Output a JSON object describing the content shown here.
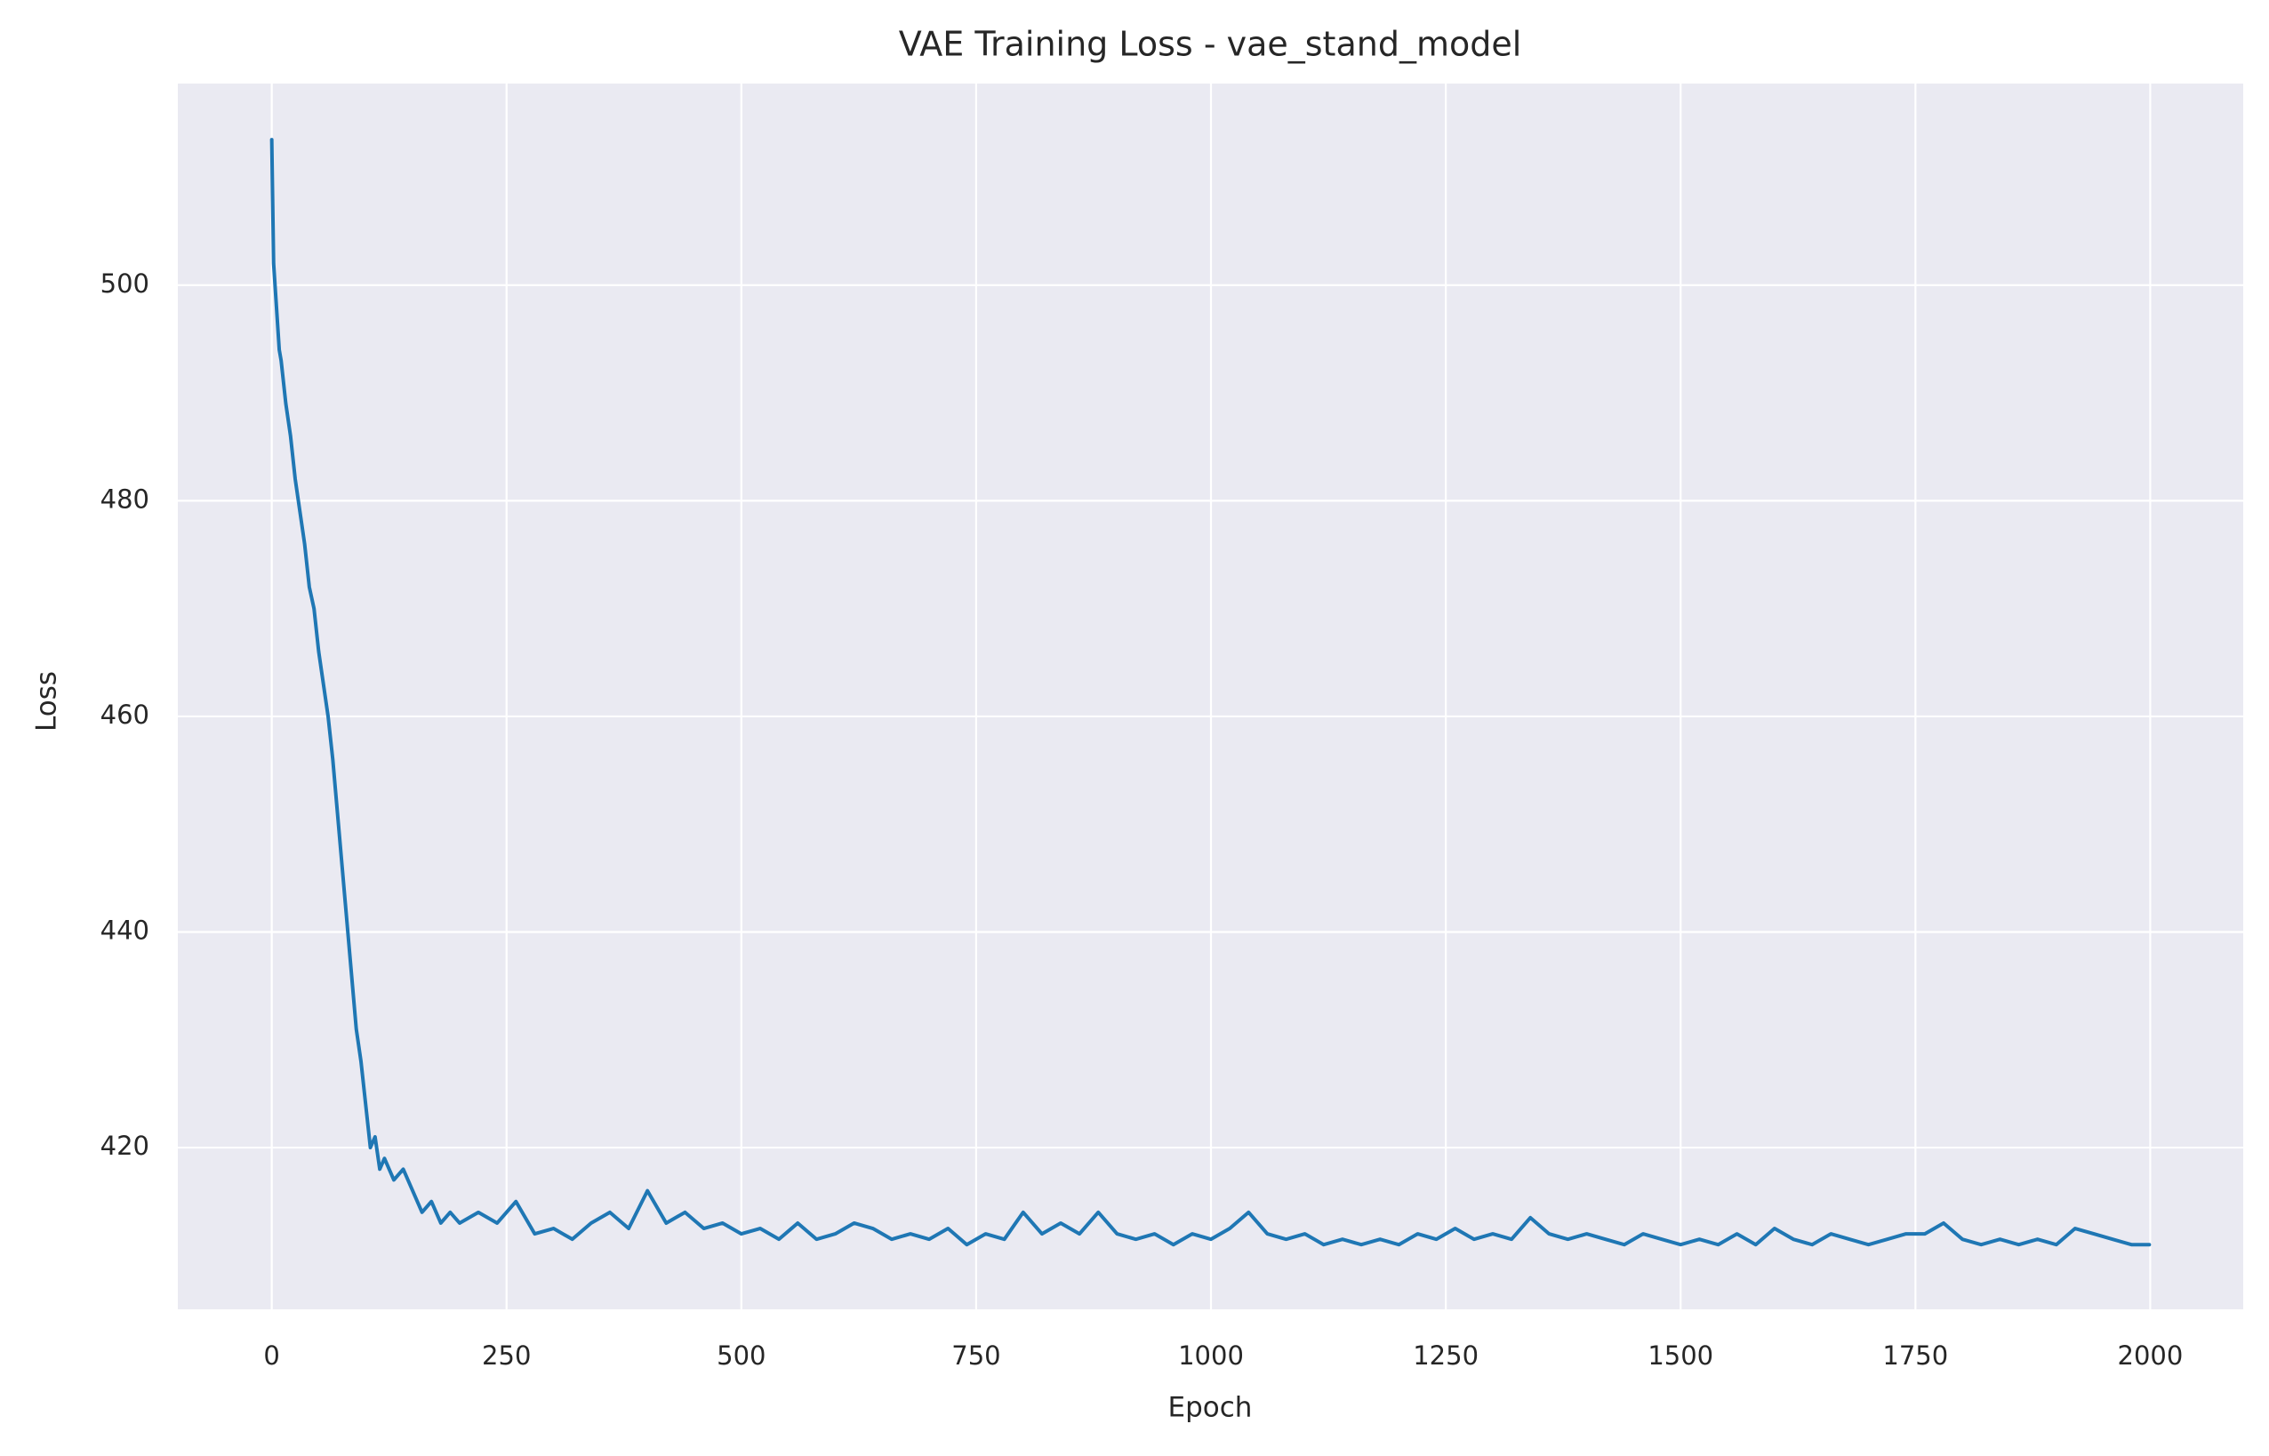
{
  "chart_data": {
    "type": "line",
    "title": "VAE Training Loss - vae_stand_model",
    "x_label": "Epoch",
    "y_label": "Loss",
    "x": [
      0,
      2,
      5,
      8,
      10,
      15,
      20,
      25,
      30,
      35,
      40,
      45,
      50,
      55,
      60,
      65,
      70,
      75,
      80,
      85,
      90,
      95,
      100,
      105,
      110,
      115,
      120,
      130,
      140,
      150,
      160,
      170,
      180,
      190,
      200,
      220,
      240,
      260,
      280,
      300,
      320,
      340,
      360,
      380,
      400,
      420,
      440,
      460,
      480,
      500,
      520,
      540,
      560,
      580,
      600,
      620,
      640,
      660,
      680,
      700,
      720,
      740,
      760,
      780,
      800,
      820,
      840,
      860,
      880,
      900,
      920,
      940,
      960,
      980,
      1000,
      1020,
      1040,
      1060,
      1080,
      1100,
      1120,
      1140,
      1160,
      1180,
      1200,
      1220,
      1240,
      1260,
      1280,
      1300,
      1320,
      1340,
      1360,
      1380,
      1400,
      1420,
      1440,
      1460,
      1480,
      1500,
      1520,
      1540,
      1560,
      1580,
      1600,
      1620,
      1640,
      1660,
      1680,
      1700,
      1720,
      1740,
      1760,
      1780,
      1800,
      1820,
      1840,
      1860,
      1880,
      1900,
      1920,
      1940,
      1960,
      1980,
      1999
    ],
    "values": [
      513.5,
      502,
      498,
      494,
      493,
      489,
      486,
      482,
      479,
      476,
      472,
      470,
      466,
      463,
      460,
      456,
      451,
      446,
      441,
      436,
      431,
      428,
      424,
      420,
      421,
      418,
      419,
      417,
      418,
      416,
      414,
      415,
      413,
      414,
      413,
      414,
      413,
      415,
      412,
      412.5,
      411.5,
      413,
      414,
      412.5,
      416,
      413,
      414,
      412.5,
      413,
      412,
      412.5,
      411.5,
      413,
      411.5,
      412,
      413,
      412.5,
      411.5,
      412,
      411.5,
      412.5,
      411,
      412,
      411.5,
      414,
      412,
      413,
      412,
      414,
      412,
      411.5,
      412,
      411,
      412,
      411.5,
      412.5,
      414,
      412,
      411.5,
      412,
      411,
      411.5,
      411,
      411.5,
      411,
      412,
      411.5,
      412.5,
      411.5,
      412,
      411.5,
      413.5,
      412,
      411.5,
      412,
      411.5,
      411,
      412,
      411.5,
      411,
      411.5,
      411,
      412,
      411,
      412.5,
      411.5,
      411,
      412,
      411.5,
      411,
      411.5,
      412,
      412,
      413,
      411.5,
      411,
      411.5,
      411,
      411.5,
      411,
      412.5,
      412,
      411.5,
      411,
      411
    ],
    "color": "#1f77b4",
    "xlim": [
      -100,
      2099
    ],
    "ylim": [
      405,
      518.7
    ],
    "xticks": [
      0,
      250,
      500,
      750,
      1000,
      1250,
      1500,
      1750,
      2000
    ],
    "yticks": [
      420,
      440,
      460,
      480,
      500
    ],
    "grid": true
  }
}
